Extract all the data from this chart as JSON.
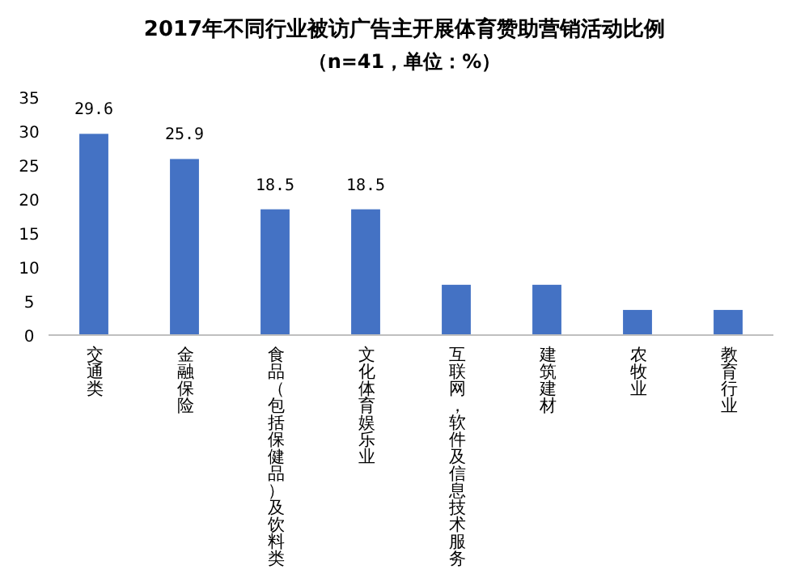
{
  "chart_data": {
    "type": "bar",
    "title": "2017年不同行业被访广告主开展体育赞助营销活动比例",
    "subtitle": "（n=41，单位：%）",
    "categories": [
      "交通类",
      "金融保险",
      "食品（包括保健品）及饮料类",
      "文化体育娱乐业",
      "互联网，软件及信息技术服务",
      "建筑建材",
      "农牧业",
      "教育行业"
    ],
    "values": [
      29.6,
      25.9,
      18.5,
      18.5,
      7.4,
      7.4,
      3.7,
      3.7
    ],
    "value_labels": [
      "29.6",
      "25.9",
      "18.5",
      "18.5",
      null,
      null,
      null,
      null
    ],
    "color": "#4472c4",
    "ylim": [
      0,
      35
    ],
    "yticks": [
      0,
      5,
      10,
      15,
      20,
      25,
      30,
      35
    ],
    "grid": false
  }
}
